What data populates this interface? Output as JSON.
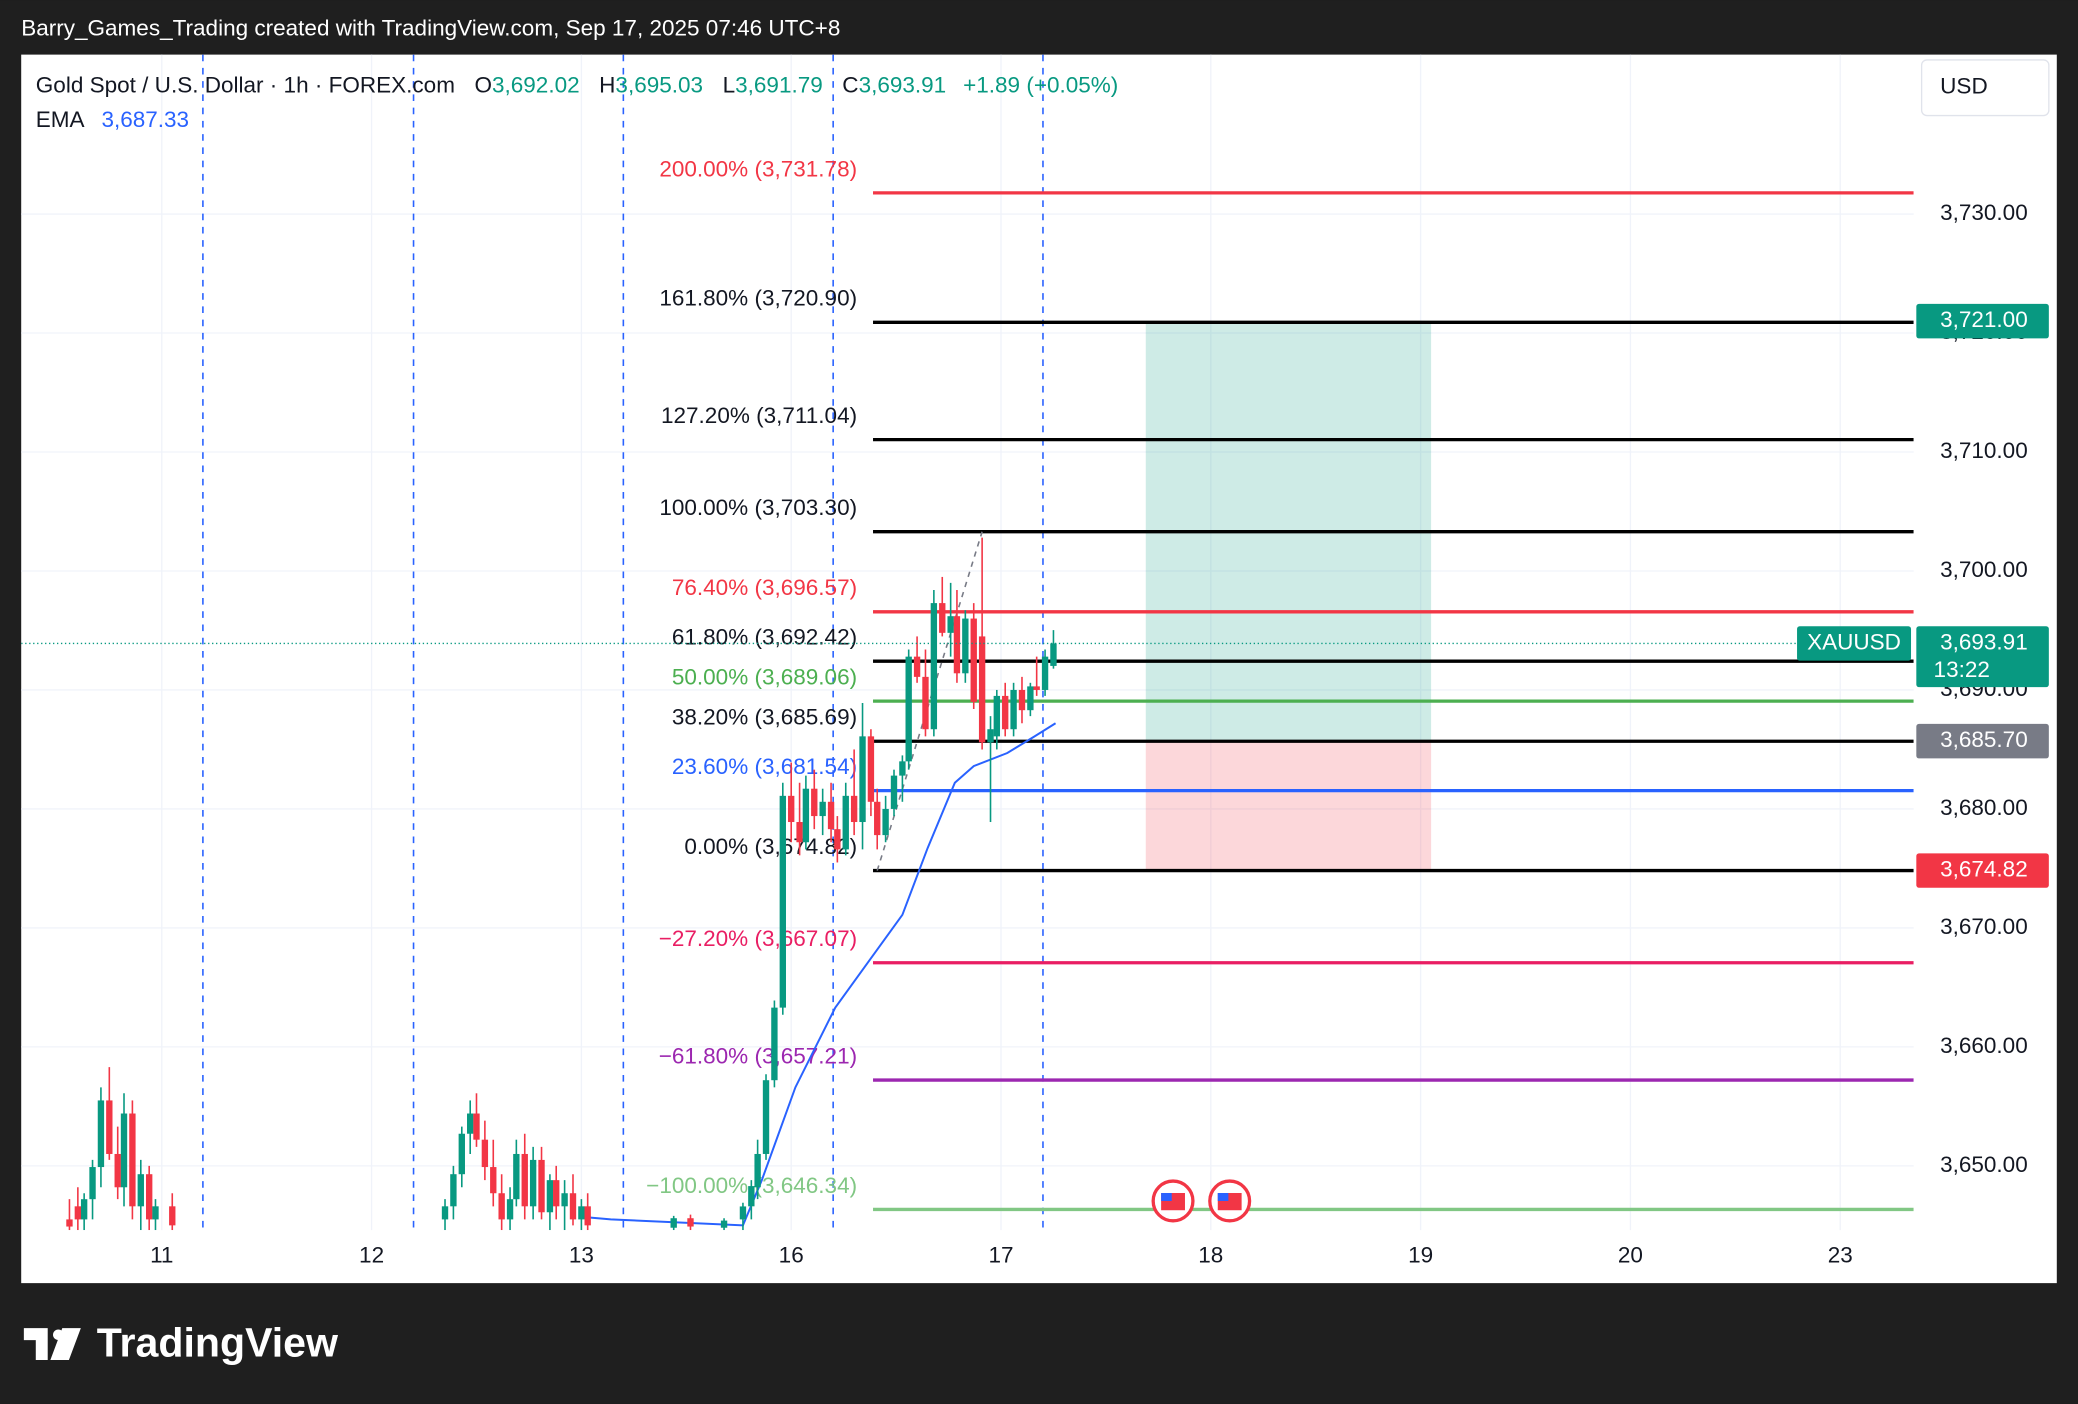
{
  "header": {
    "attribution": "Barry_Games_Trading created with TradingView.com, Sep 17, 2025 07:46 UTC+8"
  },
  "legend": {
    "symbol": "Gold Spot / U.S. Dollar · 1h · FOREX.com",
    "ohlc": [
      {
        "label": "O",
        "value": "3,692.02"
      },
      {
        "label": "H",
        "value": "3,695.03"
      },
      {
        "label": "L",
        "value": "3,691.79"
      },
      {
        "label": "C",
        "value": "3,693.91"
      }
    ],
    "change": "+1.89 (+0.05%)",
    "ema_label": "EMA",
    "ema_value": "3,687.33"
  },
  "currency": "USD",
  "brand": "TradingView",
  "chart_data": {
    "type": "candlestick",
    "xlim": [
      -0.67,
      8.35
    ],
    "ylim": [
      3644.6,
      3743.4
    ],
    "grid": true,
    "up_color": "#089981",
    "down_color": "#f23645",
    "xticks": [
      {
        "value": 0,
        "label": "11"
      },
      {
        "value": 1,
        "label": "12"
      },
      {
        "value": 2,
        "label": "13"
      },
      {
        "value": 3,
        "label": "16"
      },
      {
        "value": 4,
        "label": "17"
      },
      {
        "value": 5,
        "label": "18"
      },
      {
        "value": 6,
        "label": "19"
      },
      {
        "value": 7,
        "label": "20"
      },
      {
        "value": 8,
        "label": "23"
      }
    ],
    "yticks": [
      {
        "value": 3650,
        "label": "3,650.00"
      },
      {
        "value": 3660,
        "label": "3,660.00"
      },
      {
        "value": 3670,
        "label": "3,670.00"
      },
      {
        "value": 3680,
        "label": "3,680.00"
      },
      {
        "value": 3690,
        "label": "3,690.00"
      },
      {
        "value": 3700,
        "label": "3,700.00"
      },
      {
        "value": 3710,
        "label": "3,710.00"
      },
      {
        "value": 3720,
        "label": "3,720.00"
      },
      {
        "value": 3730,
        "label": "3,730.00"
      }
    ],
    "x": [
      -0.44,
      -0.4,
      -0.37,
      -0.33,
      -0.29,
      -0.25,
      -0.21,
      -0.18,
      -0.14,
      -0.1,
      -0.06,
      -0.03,
      0.05,
      1.35,
      1.39,
      1.43,
      1.47,
      1.5,
      1.54,
      1.58,
      1.62,
      1.66,
      1.69,
      1.73,
      1.77,
      1.81,
      1.85,
      1.88,
      1.92,
      1.96,
      2.0,
      2.03,
      2.44,
      2.52,
      2.68,
      2.77,
      2.81,
      2.84,
      2.88,
      2.92,
      2.96,
      3.0,
      3.04,
      3.07,
      3.11,
      3.15,
      3.19,
      3.22,
      3.26,
      3.3,
      3.34,
      3.38,
      3.41,
      3.45,
      3.49,
      3.53,
      3.56,
      3.6,
      3.64,
      3.68,
      3.72,
      3.76,
      3.79,
      3.83,
      3.87,
      3.91,
      3.95,
      3.98,
      4.02,
      4.06,
      4.1,
      4.14,
      4.17,
      4.21,
      4.25
    ],
    "open": [
      3645.5,
      3646.6,
      3645.5,
      3647.2,
      3649.9,
      3655.5,
      3651.0,
      3648.2,
      3654.4,
      3646.6,
      3649.3,
      3645.5,
      3646.6,
      3645.5,
      3646.6,
      3649.3,
      3652.7,
      3654.4,
      3652.2,
      3649.9,
      3647.7,
      3645.5,
      3647.2,
      3651.0,
      3646.6,
      3650.5,
      3646.1,
      3648.8,
      3646.6,
      3647.7,
      3645.5,
      3646.6,
      3644.8,
      3645.6,
      3644.8,
      3645.5,
      3646.6,
      3648.2,
      3651.0,
      3657.2,
      3663.3,
      3681.1,
      3678.9,
      3677.2,
      3681.7,
      3679.4,
      3680.6,
      3678.3,
      3676.6,
      3681.1,
      3678.9,
      3686.1,
      3680.6,
      3677.8,
      3680.0,
      3682.8,
      3684.0,
      3692.8,
      3691.1,
      3686.7,
      3697.3,
      3694.8,
      3696.2,
      3691.4,
      3696.0,
      3694.5,
      3685.6,
      3686.1,
      3689.5,
      3686.7,
      3690.0,
      3688.3,
      3690.3,
      3690.0,
      3692.02
    ],
    "high": [
      3647.2,
      3648.2,
      3647.7,
      3650.5,
      3656.6,
      3658.3,
      3653.3,
      3656.1,
      3655.5,
      3650.5,
      3650.0,
      3647.2,
      3647.7,
      3647.2,
      3650.0,
      3653.3,
      3655.5,
      3656.1,
      3653.8,
      3652.2,
      3649.3,
      3648.2,
      3652.2,
      3652.7,
      3651.6,
      3651.6,
      3649.3,
      3650.0,
      3648.8,
      3649.3,
      3647.2,
      3647.7,
      3645.8,
      3645.9,
      3645.6,
      3646.9,
      3648.8,
      3652.2,
      3657.7,
      3663.9,
      3682.2,
      3683.9,
      3682.2,
      3682.8,
      3683.3,
      3681.7,
      3682.2,
      3679.4,
      3682.2,
      3685.0,
      3688.9,
      3686.7,
      3681.7,
      3681.1,
      3683.3,
      3684.5,
      3693.4,
      3694.5,
      3693.4,
      3698.4,
      3699.5,
      3699.0,
      3698.4,
      3696.7,
      3697.3,
      3702.8,
      3687.8,
      3690.0,
      3690.6,
      3690.6,
      3691.1,
      3690.6,
      3692.8,
      3693.4,
      3695.03
    ],
    "low": [
      3644.6,
      3644.6,
      3644.6,
      3645.5,
      3648.2,
      3650.5,
      3647.2,
      3646.6,
      3645.5,
      3644.6,
      3644.6,
      3644.6,
      3644.6,
      3644.6,
      3645.5,
      3648.2,
      3651.0,
      3651.6,
      3648.8,
      3646.6,
      3644.6,
      3644.6,
      3646.6,
      3645.5,
      3645.5,
      3645.5,
      3644.6,
      3645.5,
      3644.6,
      3645.0,
      3644.6,
      3644.6,
      3644.6,
      3644.6,
      3644.6,
      3644.6,
      3645.5,
      3647.2,
      3650.5,
      3656.6,
      3662.7,
      3677.2,
      3676.1,
      3676.6,
      3678.3,
      3677.8,
      3677.2,
      3675.5,
      3676.1,
      3677.8,
      3676.6,
      3679.4,
      3676.6,
      3677.2,
      3679.4,
      3680.6,
      3683.3,
      3690.6,
      3686.1,
      3686.1,
      3694.5,
      3692.8,
      3690.6,
      3690.6,
      3688.4,
      3685.0,
      3678.9,
      3685.0,
      3686.1,
      3686.1,
      3687.2,
      3687.8,
      3689.5,
      3689.5,
      3691.79
    ],
    "close": [
      3644.9,
      3645.5,
      3647.2,
      3649.9,
      3655.5,
      3651.0,
      3648.2,
      3654.4,
      3646.6,
      3649.3,
      3645.5,
      3646.6,
      3645.0,
      3646.6,
      3649.3,
      3652.7,
      3654.4,
      3652.2,
      3649.9,
      3647.7,
      3645.5,
      3647.2,
      3651.0,
      3646.6,
      3650.5,
      3646.1,
      3648.8,
      3646.6,
      3647.7,
      3645.5,
      3646.6,
      3645.0,
      3645.6,
      3644.9,
      3645.4,
      3646.59,
      3648.3,
      3651.0,
      3657.2,
      3663.3,
      3681.1,
      3678.9,
      3677.2,
      3681.7,
      3679.4,
      3680.6,
      3678.3,
      3676.6,
      3681.1,
      3678.9,
      3686.1,
      3680.6,
      3677.8,
      3680.0,
      3682.8,
      3684.0,
      3692.8,
      3691.1,
      3686.7,
      3697.3,
      3694.8,
      3696.2,
      3691.4,
      3696.0,
      3689.0,
      3685.6,
      3686.7,
      3689.5,
      3686.7,
      3690.0,
      3688.3,
      3690.3,
      3690.0,
      3692.8,
      3693.91
    ],
    "ema": {
      "color": "#2962ff",
      "x": [
        2.01,
        2.14,
        2.77,
        2.86,
        3.02,
        3.21,
        3.37,
        3.53,
        3.65,
        3.78,
        3.87,
        4.03,
        4.16,
        4.26
      ],
      "values": [
        3645.7,
        3645.5,
        3645.0,
        3648.8,
        3656.6,
        3663.3,
        3667.2,
        3671.1,
        3676.7,
        3682.2,
        3683.6,
        3684.7,
        3686.1,
        3687.2
      ]
    },
    "session_lines": [
      0.196,
      1.2,
      2.2,
      3.2,
      4.2
    ],
    "fib_x": [
      3.39,
      8.35
    ],
    "fib_anchor_x": [
      3.41,
      3.91
    ],
    "fib_levels": [
      {
        "label": "200.00% (3,731.78)",
        "value": 3731.78,
        "color": "#f23645"
      },
      {
        "label": "161.80% (3,720.90)",
        "value": 3720.9,
        "color": "#000000"
      },
      {
        "label": "127.20% (3,711.04)",
        "value": 3711.04,
        "color": "#000000"
      },
      {
        "label": "100.00% (3,703.30)",
        "value": 3703.3,
        "color": "#000000"
      },
      {
        "label": "76.40% (3,696.57)",
        "value": 3696.57,
        "color": "#f23645"
      },
      {
        "label": "61.80% (3,692.42)",
        "value": 3692.42,
        "color": "#000000"
      },
      {
        "label": "50.00% (3,689.06)",
        "value": 3689.06,
        "color": "#4caf50"
      },
      {
        "label": "38.20% (3,685.69)",
        "value": 3685.69,
        "color": "#000000"
      },
      {
        "label": "23.60% (3,681.54)",
        "value": 3681.54,
        "color": "#2962ff"
      },
      {
        "label": "0.00% (3,674.82)",
        "value": 3674.82,
        "color": "#000000"
      },
      {
        "label": "−27.20% (3,667.07)",
        "value": 3667.07,
        "color": "#e91e63"
      },
      {
        "label": "−61.80% (3,657.21)",
        "value": 3657.21,
        "color": "#9c27b0"
      },
      {
        "label": "−100.00% (3,646.34)",
        "value": 3646.34,
        "color": "#81c784"
      }
    ],
    "position": {
      "x": [
        4.69,
        6.05
      ],
      "target": 3721.0,
      "entry": 3685.7,
      "stop": 3674.82,
      "profit_color": "#089981",
      "loss_color": "#f23645"
    },
    "events_x": [
      4.82,
      5.09
    ],
    "price_badges": [
      {
        "value": 3721.0,
        "label": "3,721.00",
        "color": "#089981"
      },
      {
        "value": 3693.91,
        "label": "3,693.91",
        "color": "#089981",
        "symbol": "XAUUSD",
        "countdown": "13:22"
      },
      {
        "value": 3685.7,
        "label": "3,685.70",
        "color": "#787b86"
      },
      {
        "value": 3674.82,
        "label": "3,674.82",
        "color": "#f23645"
      }
    ]
  }
}
